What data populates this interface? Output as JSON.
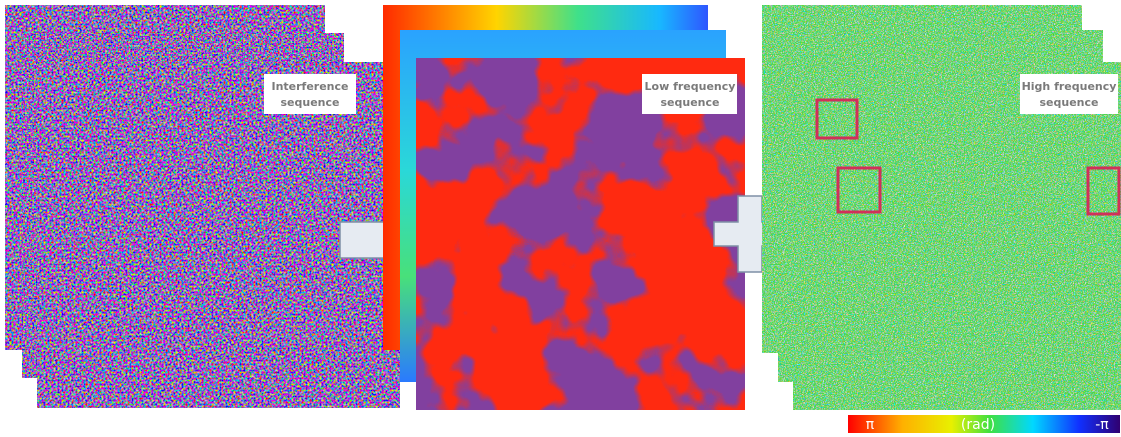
{
  "panels": [
    {
      "label_lines": [
        "Interference",
        "sequence"
      ]
    },
    {
      "label_lines": [
        "Low frequency",
        "sequence"
      ]
    },
    {
      "label_lines": [
        "High frequency",
        "sequence"
      ]
    }
  ],
  "colorbar": {
    "max_label": "π",
    "unit": "(rad)",
    "min_label": "-π"
  }
}
